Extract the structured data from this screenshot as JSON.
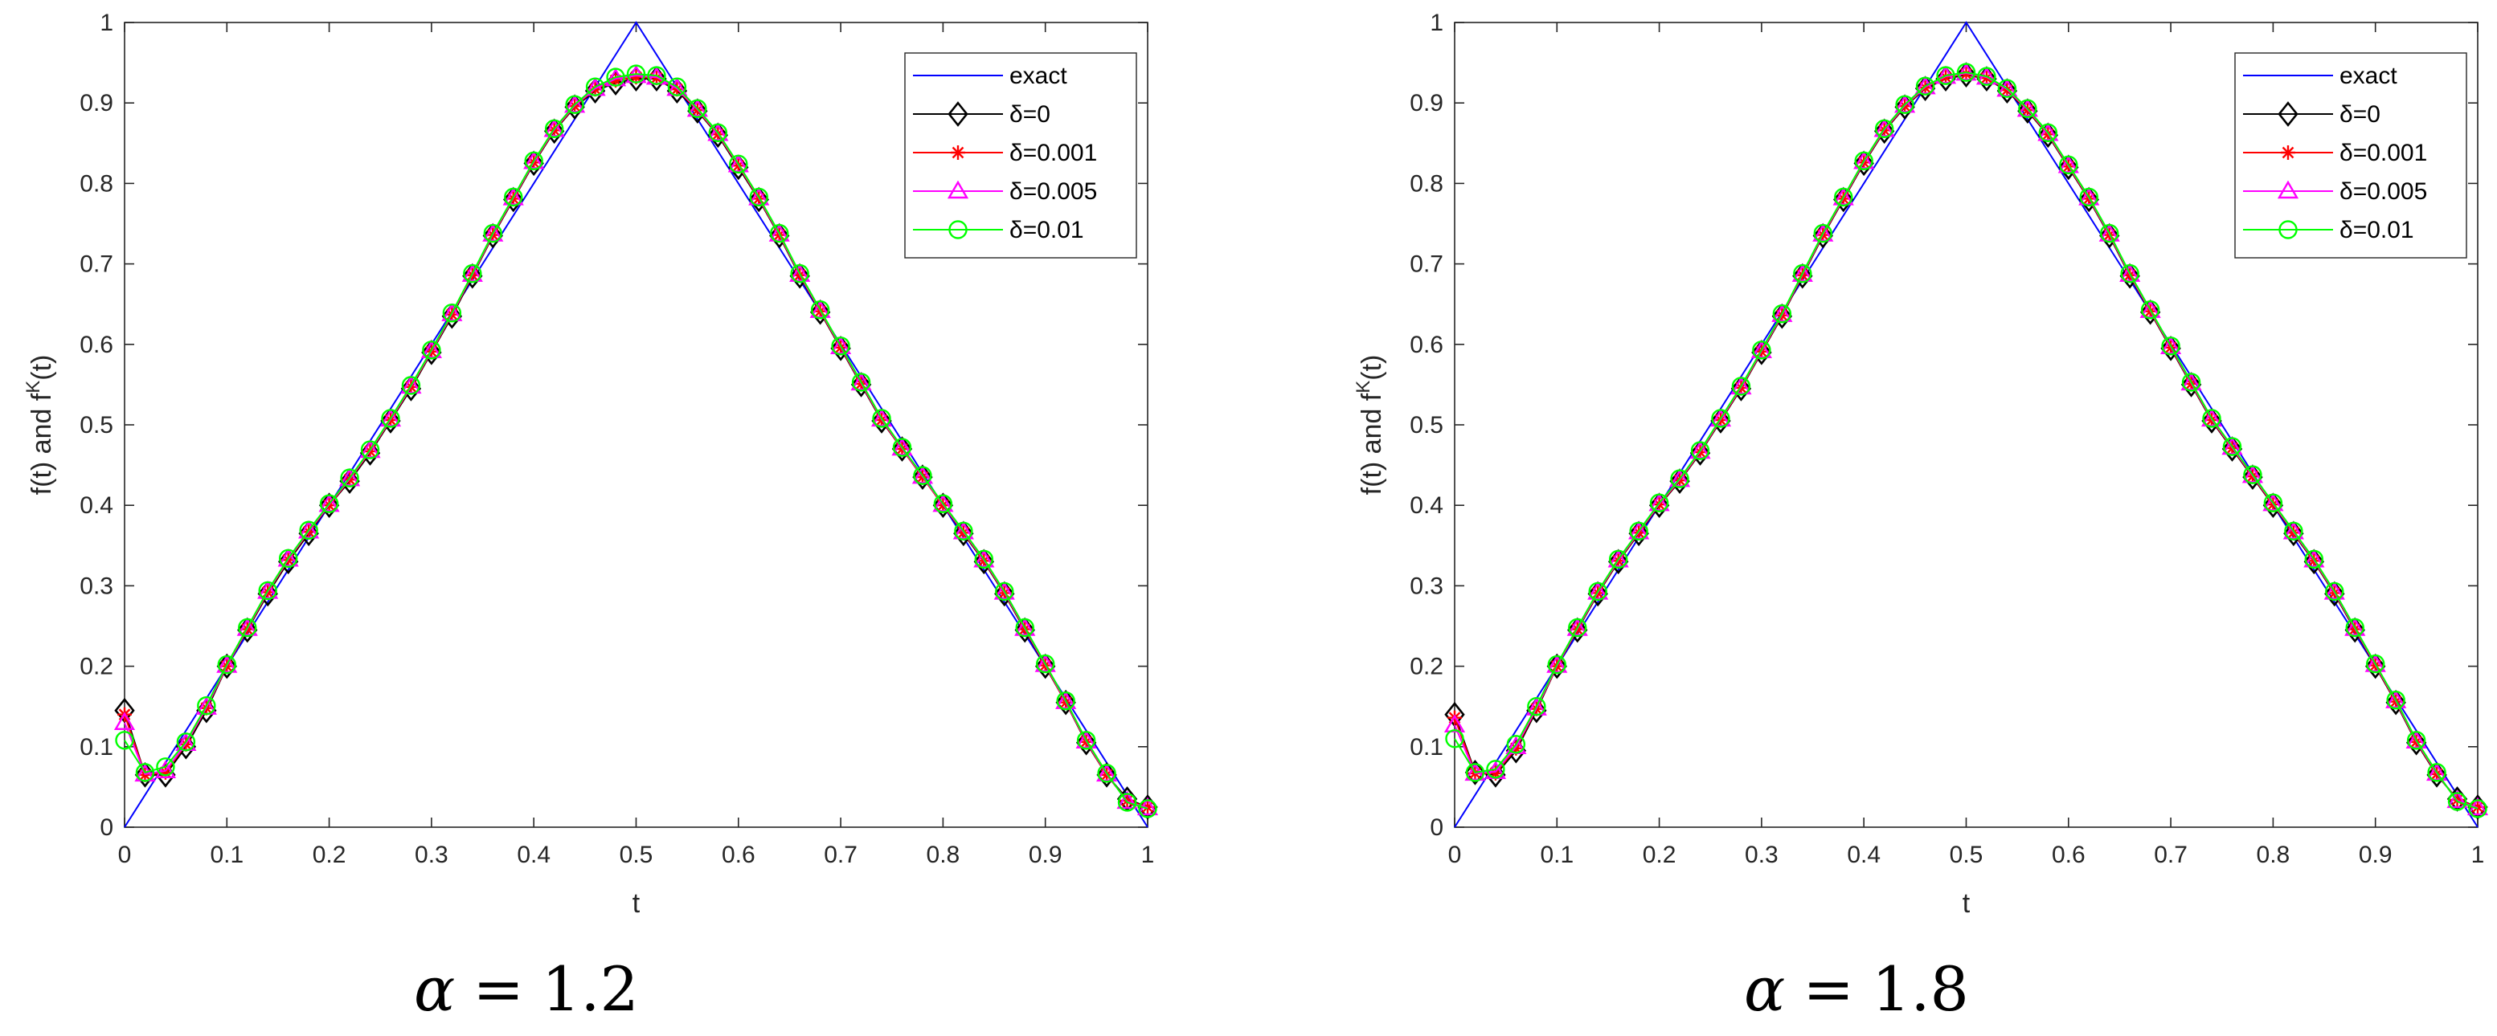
{
  "chart_data": [
    {
      "type": "line",
      "caption": {
        "symbol": "α",
        "equals": "=",
        "value": "1.2"
      },
      "xlabel": "t",
      "ylabel": {
        "main": "f(t) and f",
        "sup": "K",
        "tail": "(t)"
      },
      "xlim": [
        0,
        1
      ],
      "ylim": [
        0,
        1
      ],
      "xticks": [
        "0",
        "0.1",
        "0.2",
        "0.3",
        "0.4",
        "0.5",
        "0.6",
        "0.7",
        "0.8",
        "0.9",
        "1"
      ],
      "yticks": [
        "0",
        "0.1",
        "0.2",
        "0.3",
        "0.4",
        "0.5",
        "0.6",
        "0.7",
        "0.8",
        "0.9",
        "1"
      ],
      "grid": false,
      "legend_position": "top-right",
      "exact": {
        "name": "exact",
        "color": "#0000ff",
        "x": [
          0,
          0.5,
          1
        ],
        "y": [
          0,
          1,
          0
        ]
      },
      "x": [
        0,
        0.02,
        0.04,
        0.06,
        0.08,
        0.1,
        0.12,
        0.14,
        0.16,
        0.18,
        0.2,
        0.22,
        0.24,
        0.26,
        0.28,
        0.3,
        0.32,
        0.34,
        0.36,
        0.38,
        0.4,
        0.42,
        0.44,
        0.46,
        0.48,
        0.5,
        0.52,
        0.54,
        0.56,
        0.58,
        0.6,
        0.62,
        0.64,
        0.66,
        0.68,
        0.7,
        0.72,
        0.74,
        0.76,
        0.78,
        0.8,
        0.82,
        0.84,
        0.86,
        0.88,
        0.9,
        0.92,
        0.94,
        0.96,
        0.98,
        1
      ],
      "series": [
        {
          "name": "δ=0",
          "color": "#000000",
          "marker": "diamond",
          "y": [
            0.145,
            0.065,
            0.065,
            0.1,
            0.145,
            0.2,
            0.245,
            0.29,
            0.33,
            0.365,
            0.4,
            0.43,
            0.465,
            0.505,
            0.545,
            0.59,
            0.635,
            0.685,
            0.735,
            0.78,
            0.825,
            0.865,
            0.895,
            0.915,
            0.925,
            0.93,
            0.93,
            0.915,
            0.89,
            0.86,
            0.82,
            0.78,
            0.735,
            0.685,
            0.64,
            0.595,
            0.55,
            0.505,
            0.47,
            0.435,
            0.4,
            0.365,
            0.33,
            0.29,
            0.245,
            0.2,
            0.155,
            0.105,
            0.065,
            0.035,
            0.025
          ]
        },
        {
          "name": "δ=0.001",
          "color": "#ff0000",
          "marker": "star",
          "y": [
            0.14,
            0.065,
            0.068,
            0.103,
            0.148,
            0.2,
            0.246,
            0.292,
            0.332,
            0.367,
            0.4,
            0.432,
            0.467,
            0.506,
            0.547,
            0.591,
            0.637,
            0.686,
            0.736,
            0.781,
            0.826,
            0.866,
            0.896,
            0.917,
            0.928,
            0.932,
            0.931,
            0.917,
            0.891,
            0.861,
            0.822,
            0.781,
            0.736,
            0.686,
            0.641,
            0.596,
            0.551,
            0.506,
            0.47,
            0.435,
            0.4,
            0.366,
            0.331,
            0.291,
            0.246,
            0.201,
            0.155,
            0.106,
            0.065,
            0.033,
            0.025
          ]
        },
        {
          "name": "δ=0.005",
          "color": "#ff00ff",
          "marker": "triangle",
          "y": [
            0.13,
            0.066,
            0.07,
            0.104,
            0.149,
            0.201,
            0.247,
            0.293,
            0.333,
            0.368,
            0.401,
            0.433,
            0.468,
            0.507,
            0.548,
            0.592,
            0.638,
            0.687,
            0.737,
            0.782,
            0.827,
            0.867,
            0.897,
            0.918,
            0.93,
            0.934,
            0.932,
            0.918,
            0.892,
            0.862,
            0.823,
            0.782,
            0.737,
            0.687,
            0.642,
            0.597,
            0.552,
            0.507,
            0.471,
            0.436,
            0.401,
            0.367,
            0.332,
            0.292,
            0.247,
            0.202,
            0.156,
            0.107,
            0.066,
            0.032,
            0.024
          ]
        },
        {
          "name": "δ=0.01",
          "color": "#00ff00",
          "marker": "circle",
          "y": [
            0.108,
            0.068,
            0.075,
            0.106,
            0.151,
            0.202,
            0.248,
            0.294,
            0.334,
            0.369,
            0.402,
            0.434,
            0.469,
            0.508,
            0.549,
            0.593,
            0.639,
            0.688,
            0.738,
            0.783,
            0.828,
            0.868,
            0.898,
            0.92,
            0.932,
            0.936,
            0.934,
            0.92,
            0.893,
            0.863,
            0.824,
            0.783,
            0.738,
            0.688,
            0.643,
            0.598,
            0.553,
            0.508,
            0.472,
            0.437,
            0.402,
            0.368,
            0.333,
            0.293,
            0.248,
            0.203,
            0.157,
            0.108,
            0.067,
            0.031,
            0.023
          ]
        }
      ]
    },
    {
      "type": "line",
      "caption": {
        "symbol": "α",
        "equals": "=",
        "value": "1.8"
      },
      "xlabel": "t",
      "ylabel": {
        "main": "f(t) and f",
        "sup": "K",
        "tail": "(t)"
      },
      "xlim": [
        0,
        1
      ],
      "ylim": [
        0,
        1
      ],
      "xticks": [
        "0",
        "0.1",
        "0.2",
        "0.3",
        "0.4",
        "0.5",
        "0.6",
        "0.7",
        "0.8",
        "0.9",
        "1"
      ],
      "yticks": [
        "0",
        "0.1",
        "0.2",
        "0.3",
        "0.4",
        "0.5",
        "0.6",
        "0.7",
        "0.8",
        "0.9",
        "1"
      ],
      "grid": false,
      "legend_position": "top-right",
      "exact": {
        "name": "exact",
        "color": "#0000ff",
        "x": [
          0,
          0.5,
          1
        ],
        "y": [
          0,
          1,
          0
        ]
      },
      "x": [
        0,
        0.02,
        0.04,
        0.06,
        0.08,
        0.1,
        0.12,
        0.14,
        0.16,
        0.18,
        0.2,
        0.22,
        0.24,
        0.26,
        0.28,
        0.3,
        0.32,
        0.34,
        0.36,
        0.38,
        0.4,
        0.42,
        0.44,
        0.46,
        0.48,
        0.5,
        0.52,
        0.54,
        0.56,
        0.58,
        0.6,
        0.62,
        0.64,
        0.66,
        0.68,
        0.7,
        0.72,
        0.74,
        0.76,
        0.78,
        0.8,
        0.82,
        0.84,
        0.86,
        0.88,
        0.9,
        0.92,
        0.94,
        0.96,
        0.98,
        1
      ],
      "series": [
        {
          "name": "δ=0",
          "color": "#000000",
          "marker": "diamond",
          "y": [
            0.14,
            0.068,
            0.065,
            0.095,
            0.145,
            0.2,
            0.245,
            0.29,
            0.33,
            0.365,
            0.4,
            0.43,
            0.465,
            0.505,
            0.545,
            0.59,
            0.635,
            0.685,
            0.735,
            0.78,
            0.825,
            0.865,
            0.895,
            0.918,
            0.93,
            0.935,
            0.93,
            0.915,
            0.89,
            0.86,
            0.82,
            0.78,
            0.735,
            0.685,
            0.64,
            0.595,
            0.55,
            0.505,
            0.47,
            0.435,
            0.4,
            0.365,
            0.33,
            0.29,
            0.245,
            0.2,
            0.155,
            0.105,
            0.065,
            0.035,
            0.025
          ]
        },
        {
          "name": "δ=0.001",
          "color": "#ff0000",
          "marker": "star",
          "y": [
            0.136,
            0.067,
            0.067,
            0.098,
            0.147,
            0.2,
            0.246,
            0.291,
            0.331,
            0.366,
            0.401,
            0.431,
            0.466,
            0.506,
            0.546,
            0.591,
            0.636,
            0.686,
            0.736,
            0.781,
            0.826,
            0.866,
            0.896,
            0.919,
            0.932,
            0.936,
            0.931,
            0.916,
            0.891,
            0.861,
            0.821,
            0.781,
            0.736,
            0.686,
            0.641,
            0.596,
            0.551,
            0.506,
            0.471,
            0.436,
            0.401,
            0.366,
            0.331,
            0.291,
            0.246,
            0.201,
            0.156,
            0.106,
            0.066,
            0.034,
            0.025
          ]
        },
        {
          "name": "δ=0.005",
          "color": "#ff00ff",
          "marker": "triangle",
          "y": [
            0.127,
            0.067,
            0.069,
            0.1,
            0.148,
            0.201,
            0.247,
            0.292,
            0.332,
            0.367,
            0.402,
            0.432,
            0.467,
            0.507,
            0.547,
            0.592,
            0.637,
            0.687,
            0.737,
            0.782,
            0.827,
            0.867,
            0.897,
            0.92,
            0.933,
            0.937,
            0.932,
            0.917,
            0.892,
            0.862,
            0.822,
            0.782,
            0.737,
            0.687,
            0.642,
            0.597,
            0.552,
            0.507,
            0.472,
            0.437,
            0.402,
            0.367,
            0.332,
            0.292,
            0.247,
            0.202,
            0.157,
            0.107,
            0.067,
            0.033,
            0.024
          ]
        },
        {
          "name": "δ=0.01",
          "color": "#00ff00",
          "marker": "circle",
          "y": [
            0.11,
            0.068,
            0.072,
            0.103,
            0.15,
            0.202,
            0.248,
            0.293,
            0.333,
            0.368,
            0.403,
            0.433,
            0.468,
            0.508,
            0.548,
            0.593,
            0.638,
            0.688,
            0.738,
            0.783,
            0.828,
            0.868,
            0.898,
            0.921,
            0.934,
            0.938,
            0.933,
            0.918,
            0.893,
            0.863,
            0.823,
            0.783,
            0.738,
            0.688,
            0.643,
            0.598,
            0.553,
            0.508,
            0.473,
            0.438,
            0.403,
            0.368,
            0.333,
            0.293,
            0.248,
            0.203,
            0.158,
            0.108,
            0.068,
            0.032,
            0.023
          ]
        }
      ]
    }
  ]
}
